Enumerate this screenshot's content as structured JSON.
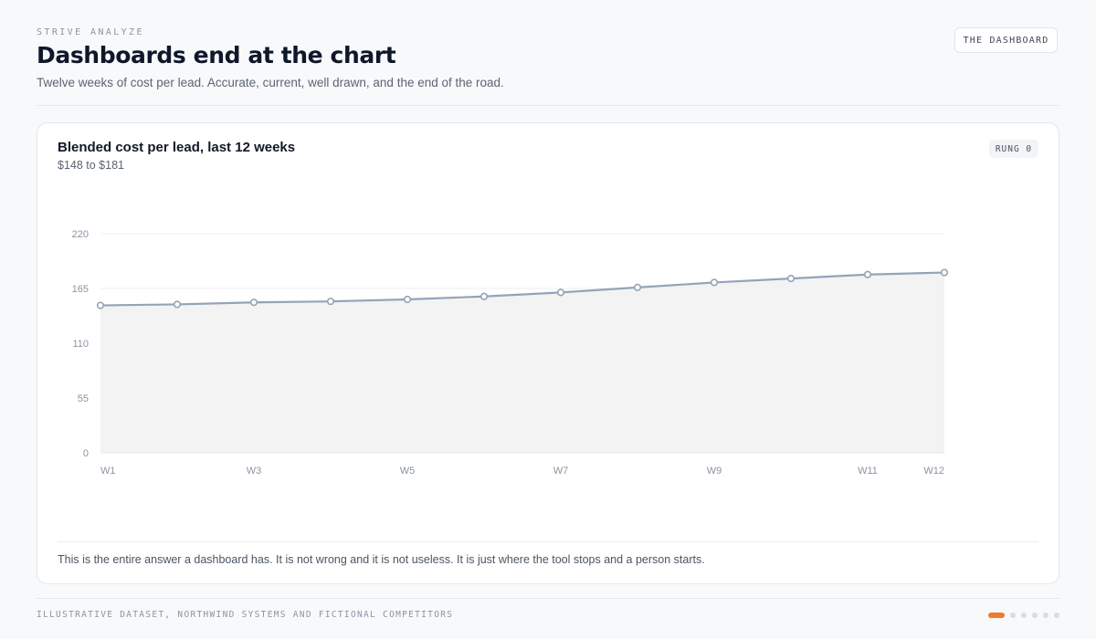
{
  "header": {
    "eyebrow": "STRIVE ANALYZE",
    "title": "Dashboards end at the chart",
    "subtitle": "Twelve weeks of cost per lead. Accurate, current, well drawn, and the end of the road.",
    "badge": "THE DASHBOARD"
  },
  "card": {
    "title": "Blended cost per lead, last 12 weeks",
    "subtitle": "$148 to $181",
    "badge": "RUNG 0",
    "note": "This is the entire answer a dashboard has. It is not wrong and it is not useless. It is just where the tool stops and a person starts."
  },
  "footer": {
    "text": "ILLUSTRATIVE DATASET, NORTHWIND SYSTEMS AND FICTIONAL COMPETITORS",
    "page_count": 6,
    "active_page": 1
  },
  "colors": {
    "line": "#94a3b8",
    "fill": "#f3f3f3",
    "accent": "#f07b2a"
  },
  "chart_data": {
    "type": "area",
    "categories": [
      "W1",
      "W2",
      "W3",
      "W4",
      "W5",
      "W6",
      "W7",
      "W8",
      "W9",
      "W10",
      "W11",
      "W12"
    ],
    "tick_labels": [
      "W1",
      "W3",
      "W5",
      "W7",
      "W9",
      "W11",
      "W12"
    ],
    "series": [
      {
        "values": [
          148,
          149,
          151,
          152,
          154,
          157,
          161,
          166,
          171,
          175,
          179,
          181
        ]
      }
    ],
    "yticks": [
      "0",
      "55",
      "110",
      "165",
      "220"
    ],
    "ylim": [
      0,
      220
    ],
    "grid": true,
    "xlabel": "",
    "ylabel": ""
  }
}
